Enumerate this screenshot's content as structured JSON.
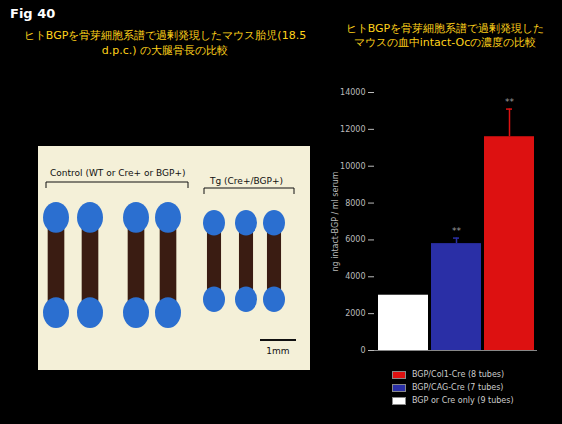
{
  "figure_label": "Fig 40",
  "left_panel": {
    "title": "ヒトBGPを骨芽細胞系譜で過剰発現したマウス胎児(18.5 d.p.c.) の大腿骨長の比較",
    "groups": [
      "Control (WT or Cre+ or BGP+)",
      "Tg (Cre+/BGP+)"
    ],
    "scale_bar": "1mm"
  },
  "chart_data": {
    "type": "bar",
    "title": "ヒトBGPを骨芽細胞系譜で過剰発現したマウスの血中intact-Ocの濃度の比較",
    "y_label": "ng intact-BGP / ml serum",
    "categories": [
      null
    ],
    "series": [
      {
        "name": "BGP or Cre only (9 tubes)",
        "color": "#ffffff",
        "values": [
          3000
        ],
        "errors": [
          null
        ]
      },
      {
        "name": "BGP/CAG-Cre (7 tubes)",
        "color": "#2a2fa6",
        "values": [
          5800
        ],
        "errors": [
          300
        ]
      },
      {
        "name": "BGP/Col1-Cre (8 tubes)",
        "color": "#dd1111",
        "values": [
          11600
        ],
        "errors": [
          1500
        ]
      }
    ],
    "annotations": [
      {
        "series": "BGP/CAG-Cre (7 tubes)",
        "text": "**"
      },
      {
        "series": "BGP/Col1-Cre (8 tubes)",
        "text": "**"
      }
    ],
    "ylim": [
      0,
      14000
    ],
    "yticks": [
      0,
      2000,
      4000,
      6000,
      8000,
      10000,
      12000,
      14000
    ],
    "legend": "bottom-right",
    "grid": false
  }
}
